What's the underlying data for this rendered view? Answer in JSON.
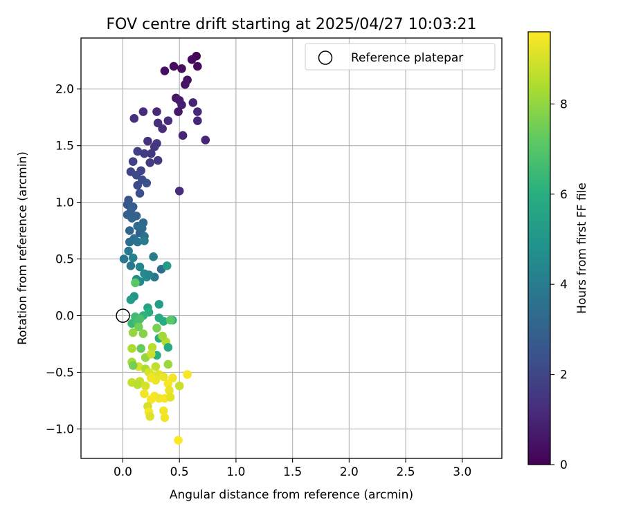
{
  "chart_data": {
    "type": "scatter",
    "title": "FOV centre drift starting at 2025/04/27 10:03:21",
    "xlabel": "Angular distance from reference (arcmin)",
    "ylabel": "Rotation from reference (arcmin)",
    "xlim": [
      -0.37,
      3.35
    ],
    "ylim": [
      -1.26,
      2.45
    ],
    "xticks": [
      "0.0",
      "0.5",
      "1.0",
      "1.5",
      "2.0",
      "2.5",
      "3.0"
    ],
    "yticks": [
      "−1.0",
      "−0.5",
      "0.0",
      "0.5",
      "1.0",
      "1.5",
      "2.0"
    ],
    "grid": true,
    "legend": {
      "placement": "top-right",
      "label": "Reference platepar"
    },
    "reference_point": {
      "x": 0.0,
      "y": 0.0
    },
    "colorbar": {
      "label": "Hours from first FF file",
      "colormap": "viridis",
      "range": [
        0,
        9.6
      ],
      "ticks": [
        "0",
        "2",
        "4",
        "6",
        "8"
      ]
    },
    "points": [
      [
        0.65,
        2.29,
        0.1
      ],
      [
        0.61,
        2.26,
        0.2
      ],
      [
        0.66,
        2.2,
        0.25
      ],
      [
        0.45,
        2.2,
        0.3
      ],
      [
        0.52,
        2.18,
        0.35
      ],
      [
        0.37,
        2.16,
        0.4
      ],
      [
        0.57,
        2.08,
        0.45
      ],
      [
        0.55,
        2.04,
        0.5
      ],
      [
        0.47,
        1.92,
        0.55
      ],
      [
        0.5,
        1.9,
        0.7
      ],
      [
        0.52,
        1.86,
        0.8
      ],
      [
        0.49,
        1.8,
        0.6
      ],
      [
        0.62,
        1.88,
        1.0
      ],
      [
        0.66,
        1.8,
        1.1
      ],
      [
        0.18,
        1.8,
        1.2
      ],
      [
        0.3,
        1.8,
        1.1
      ],
      [
        0.4,
        1.72,
        1.2
      ],
      [
        0.66,
        1.72,
        1.0
      ],
      [
        0.1,
        1.74,
        1.3
      ],
      [
        0.31,
        1.7,
        1.3
      ],
      [
        0.35,
        1.65,
        1.2
      ],
      [
        0.53,
        1.59,
        1.0
      ],
      [
        0.73,
        1.55,
        1.0
      ],
      [
        0.22,
        1.54,
        1.4
      ],
      [
        0.28,
        1.49,
        1.5
      ],
      [
        0.3,
        1.52,
        1.6
      ],
      [
        0.13,
        1.45,
        1.8
      ],
      [
        0.19,
        1.43,
        1.7
      ],
      [
        0.25,
        1.43,
        1.6
      ],
      [
        0.31,
        1.37,
        1.6
      ],
      [
        0.09,
        1.36,
        1.9
      ],
      [
        0.24,
        1.35,
        1.7
      ],
      [
        0.07,
        1.27,
        2.0
      ],
      [
        0.16,
        1.28,
        2.0
      ],
      [
        0.12,
        1.24,
        2.1
      ],
      [
        0.17,
        1.2,
        2.2
      ],
      [
        0.21,
        1.17,
        2.4
      ],
      [
        0.13,
        1.15,
        2.2
      ],
      [
        0.5,
        1.1,
        1.2
      ],
      [
        0.15,
        1.08,
        2.3
      ],
      [
        0.05,
        1.02,
        2.5
      ],
      [
        0.04,
        0.98,
        2.6
      ],
      [
        0.09,
        0.96,
        2.8
      ],
      [
        0.07,
        0.92,
        3.0
      ],
      [
        0.04,
        0.89,
        2.9
      ],
      [
        0.08,
        0.86,
        3.1
      ],
      [
        0.12,
        0.88,
        3.0
      ],
      [
        0.18,
        0.82,
        3.2
      ],
      [
        0.13,
        0.79,
        3.3
      ],
      [
        0.17,
        0.77,
        3.4
      ],
      [
        0.06,
        0.75,
        3.2
      ],
      [
        0.15,
        0.73,
        3.1
      ],
      [
        0.19,
        0.7,
        3.6
      ],
      [
        0.1,
        0.68,
        3.5
      ],
      [
        0.06,
        0.65,
        3.4
      ],
      [
        0.13,
        0.65,
        3.6
      ],
      [
        0.19,
        0.66,
        3.9
      ],
      [
        0.05,
        0.57,
        3.9
      ],
      [
        0.01,
        0.5,
        3.7
      ],
      [
        0.09,
        0.51,
        4.2
      ],
      [
        0.27,
        0.52,
        4.0
      ],
      [
        0.07,
        0.44,
        3.8
      ],
      [
        0.15,
        0.43,
        4.4
      ],
      [
        0.34,
        0.41,
        3.3
      ],
      [
        0.39,
        0.44,
        5.2
      ],
      [
        0.19,
        0.37,
        4.5
      ],
      [
        0.21,
        0.34,
        4.6
      ],
      [
        0.12,
        0.32,
        4.7
      ],
      [
        0.15,
        0.3,
        4.5
      ],
      [
        0.28,
        0.34,
        3.8
      ],
      [
        0.23,
        0.36,
        4.3
      ],
      [
        0.11,
        0.29,
        7.1
      ],
      [
        0.1,
        0.17,
        5.0
      ],
      [
        0.07,
        0.14,
        5.2
      ],
      [
        0.32,
        0.1,
        5.3
      ],
      [
        0.22,
        0.07,
        5.5
      ],
      [
        0.23,
        0.03,
        6.0
      ],
      [
        0.18,
        0.0,
        6.2
      ],
      [
        0.11,
        -0.01,
        6.5
      ],
      [
        0.15,
        -0.03,
        6.8
      ],
      [
        0.08,
        -0.07,
        6.4
      ],
      [
        0.13,
        -0.06,
        6.7
      ],
      [
        0.32,
        -0.02,
        5.8
      ],
      [
        0.36,
        -0.05,
        5.9
      ],
      [
        0.44,
        -0.04,
        6.3
      ],
      [
        0.42,
        -0.04,
        7.1
      ],
      [
        0.14,
        -0.1,
        7.5
      ],
      [
        0.3,
        -0.11,
        7.6
      ],
      [
        0.32,
        -0.2,
        6.0
      ],
      [
        0.09,
        -0.15,
        8.0
      ],
      [
        0.18,
        -0.16,
        7.8
      ],
      [
        0.38,
        -0.23,
        8.5
      ],
      [
        0.35,
        -0.18,
        8.2
      ],
      [
        0.08,
        -0.29,
        8.4
      ],
      [
        0.16,
        -0.29,
        7.3
      ],
      [
        0.26,
        -0.28,
        8.6
      ],
      [
        0.4,
        -0.28,
        5.8
      ],
      [
        0.3,
        -0.35,
        6.0
      ],
      [
        0.2,
        -0.37,
        8.0
      ],
      [
        0.25,
        -0.34,
        8.8
      ],
      [
        0.08,
        -0.41,
        8.3
      ],
      [
        0.4,
        -0.43,
        8.1
      ],
      [
        0.14,
        -0.45,
        9.0
      ],
      [
        0.2,
        -0.47,
        8.4
      ],
      [
        0.29,
        -0.45,
        8.7
      ],
      [
        0.09,
        -0.44,
        7.5
      ],
      [
        0.23,
        -0.5,
        9.0
      ],
      [
        0.27,
        -0.53,
        9.2
      ],
      [
        0.32,
        -0.52,
        9.2
      ],
      [
        0.36,
        -0.54,
        9.3
      ],
      [
        0.44,
        -0.55,
        9.4
      ],
      [
        0.57,
        -0.52,
        9.5
      ],
      [
        0.29,
        -0.57,
        9.3
      ],
      [
        0.08,
        -0.59,
        8.7
      ],
      [
        0.15,
        -0.58,
        8.8
      ],
      [
        0.13,
        -0.61,
        8.6
      ],
      [
        0.2,
        -0.62,
        9.0
      ],
      [
        0.4,
        -0.6,
        9.5
      ],
      [
        0.5,
        -0.62,
        8.8
      ],
      [
        0.25,
        -0.55,
        9.4
      ],
      [
        0.41,
        -0.66,
        9.3
      ],
      [
        0.19,
        -0.69,
        9.4
      ],
      [
        0.28,
        -0.71,
        9.5
      ],
      [
        0.32,
        -0.73,
        9.4
      ],
      [
        0.25,
        -0.74,
        9.5
      ],
      [
        0.37,
        -0.73,
        9.5
      ],
      [
        0.42,
        -0.72,
        9.2
      ],
      [
        0.22,
        -0.8,
        9.0
      ],
      [
        0.23,
        -0.85,
        9.5
      ],
      [
        0.36,
        -0.84,
        9.4
      ],
      [
        0.24,
        -0.89,
        9.1
      ],
      [
        0.37,
        -0.9,
        9.4
      ],
      [
        0.49,
        -1.1,
        9.6
      ]
    ]
  }
}
